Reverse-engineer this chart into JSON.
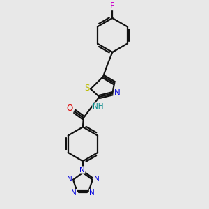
{
  "background_color": "#e8e8e8",
  "fig_size": [
    3.0,
    3.0
  ],
  "dpi": 100,
  "atom_colors": {
    "F": "#cc00cc",
    "S": "#bbbb00",
    "N": "#0000dd",
    "O": "#dd0000",
    "H": "#008888",
    "C": "#111111"
  },
  "bond_lw": 1.6,
  "dbo": 0.032,
  "label_fs": 8.5,
  "label_fs_small": 7.5
}
